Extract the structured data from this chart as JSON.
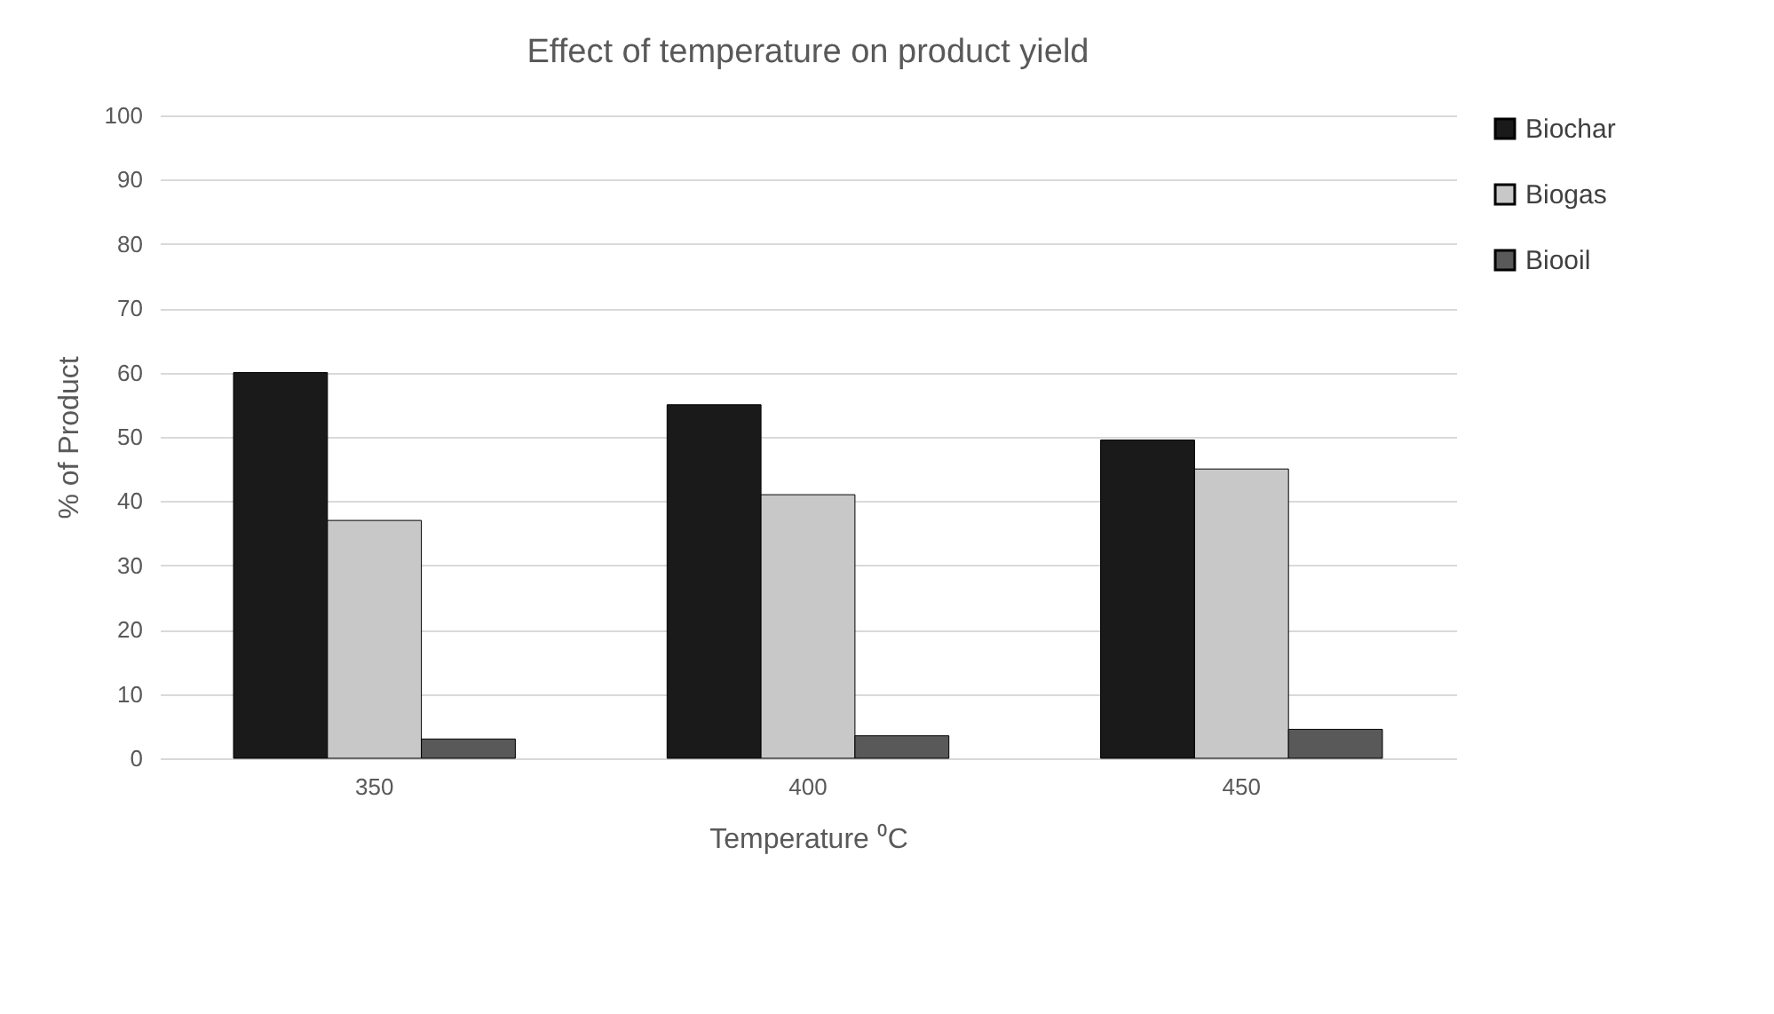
{
  "chart_data": {
    "type": "bar",
    "title": "Effect of temperature on product yield",
    "xlabel": "Temperature ⁰C",
    "ylabel": "% of Product",
    "categories": [
      "350",
      "400",
      "450"
    ],
    "series": [
      {
        "name": "Biochar",
        "color": "#1a1a1a",
        "values": [
          60,
          55,
          49.5
        ]
      },
      {
        "name": "Biogas",
        "color": "#c8c8c8",
        "values": [
          37,
          41,
          45
        ]
      },
      {
        "name": "Biooil",
        "color": "#595959",
        "values": [
          3,
          3.5,
          4.5
        ]
      }
    ],
    "ylim": [
      0,
      100
    ],
    "yticks": [
      0,
      10,
      20,
      30,
      40,
      50,
      60,
      70,
      80,
      90,
      100
    ],
    "grid": "y",
    "legend": "right"
  }
}
